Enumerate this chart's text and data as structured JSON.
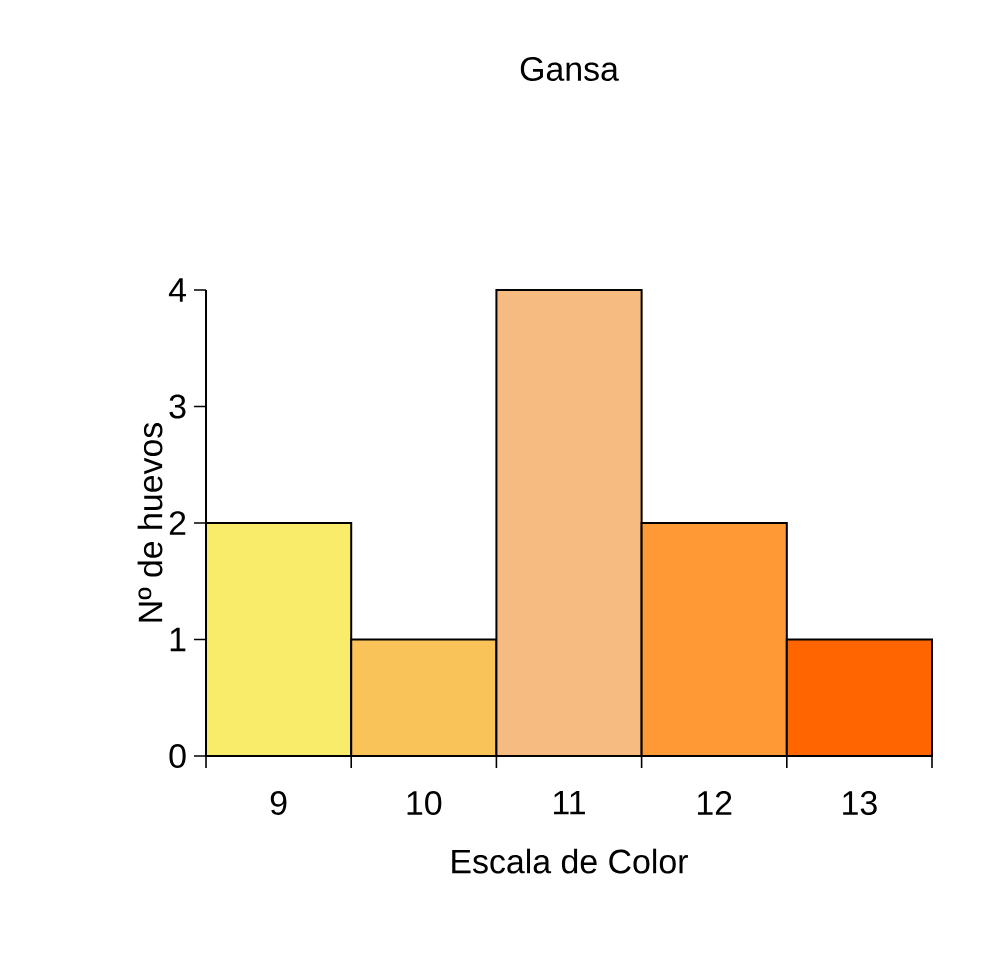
{
  "chart_data": {
    "type": "bar",
    "title": "Gansa",
    "xlabel": "Escala de Color",
    "ylabel": "Nº de huevos",
    "categories": [
      "9",
      "10",
      "11",
      "12",
      "13"
    ],
    "values": [
      2,
      1,
      4,
      2,
      1
    ],
    "colors": [
      "#f8ec6a",
      "#f9c35a",
      "#f5bb80",
      "#fd9a35",
      "#ff6600"
    ],
    "ylim": [
      0,
      4
    ],
    "yticks": [
      0,
      1,
      2,
      3,
      4
    ]
  }
}
